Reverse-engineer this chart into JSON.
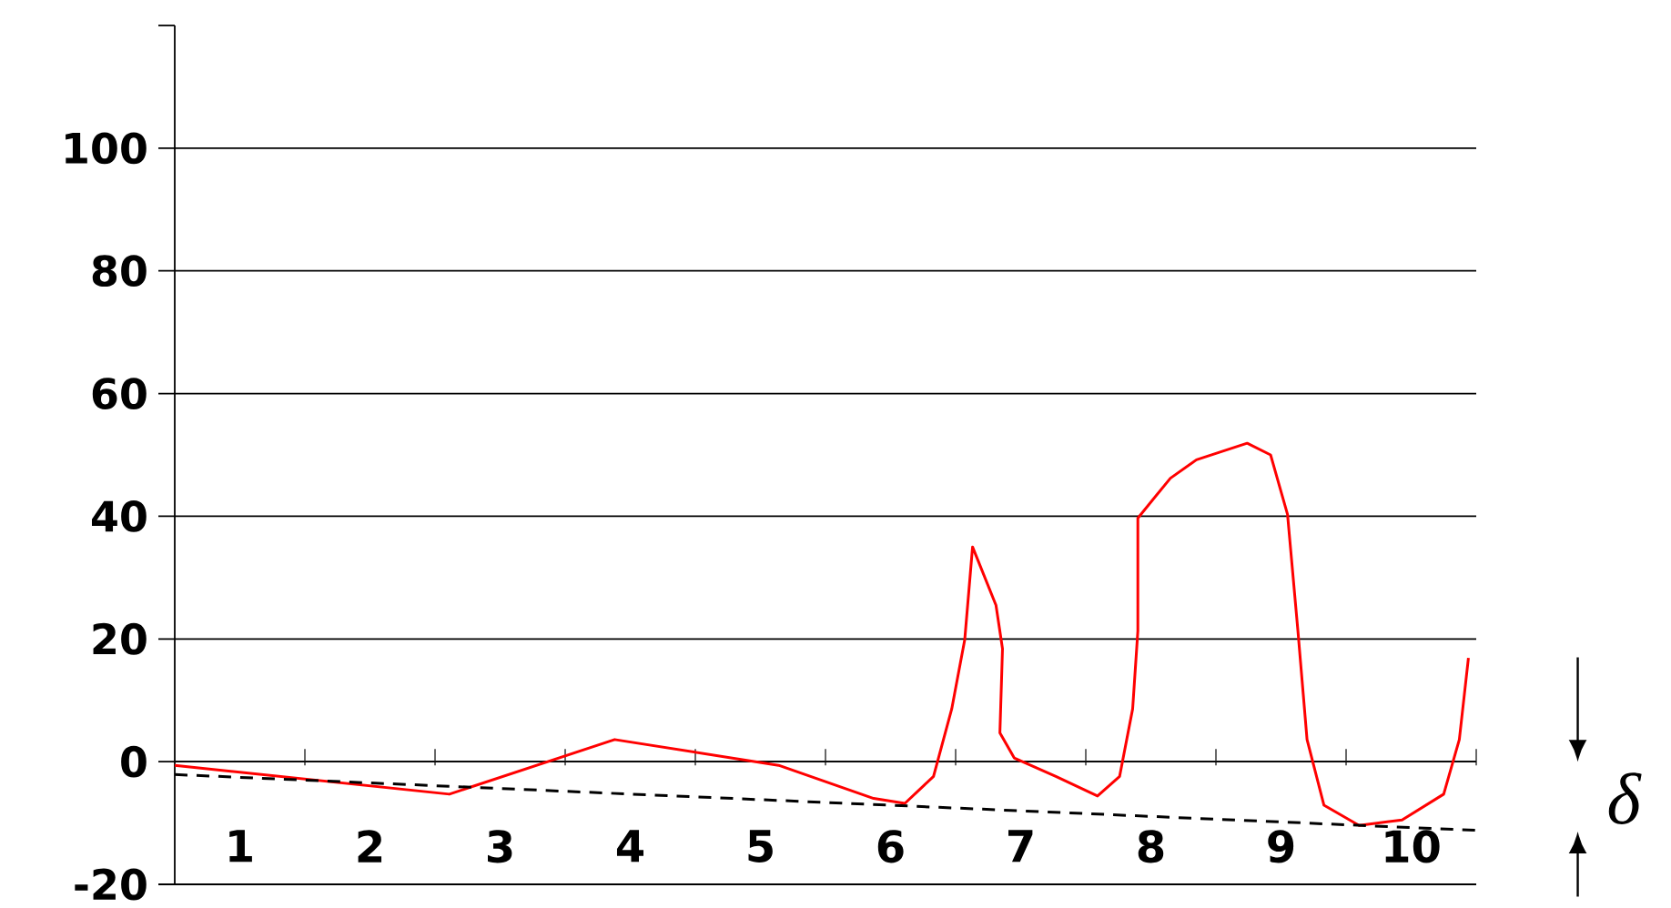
{
  "chart_data": {
    "type": "line",
    "series": [
      {
        "x": [
          0.5,
          2.61,
          3.88,
          5.14,
          5.87,
          6.11,
          6.33,
          6.47,
          6.57,
          6.63,
          6.81,
          6.86,
          6.84,
          6.95,
          7.27,
          7.59,
          7.76,
          7.86,
          7.9,
          7.9,
          8.15,
          8.35,
          8.74,
          8.92,
          9.05,
          9.13,
          9.2,
          9.33,
          9.6,
          9.93,
          10.25,
          10.37,
          10.44
        ],
        "values": [
          -0.6,
          -5.3,
          3.6,
          -0.6,
          -6,
          -6.8,
          -2.4,
          8.6,
          19.9,
          35,
          25.5,
          18.4,
          4.7,
          0.6,
          -2.4,
          -5.6,
          -2.4,
          8.6,
          21.3,
          39.7,
          46.2,
          49.2,
          51.9,
          50,
          40.3,
          21.3,
          3.6,
          -7.1,
          -10.4,
          -9.5,
          -5.3,
          3.6,
          16.9
        ],
        "color": "#ff0000",
        "line_style": "solid"
      },
      {
        "type": "line",
        "x": [
          0.5,
          10.5
        ],
        "values": [
          -2.1,
          -11.2
        ],
        "color": "#000000",
        "line_style": "dashed"
      }
    ],
    "xlim": [
      0.5,
      10.5
    ],
    "xticks": [
      {
        "value": 1,
        "label": "1"
      },
      {
        "value": 2,
        "label": "2"
      },
      {
        "value": 3,
        "label": "3"
      },
      {
        "value": 4,
        "label": "4"
      },
      {
        "value": 5,
        "label": "5"
      },
      {
        "value": 6,
        "label": "6"
      },
      {
        "value": 7,
        "label": "7"
      },
      {
        "value": 8,
        "label": "8"
      },
      {
        "value": 9,
        "label": "9"
      },
      {
        "value": 10,
        "label": "10"
      },
      {
        "value": 1.5,
        "label": null
      },
      {
        "value": 2.5,
        "label": null
      },
      {
        "value": 3.5,
        "label": null
      },
      {
        "value": 4.5,
        "label": null
      },
      {
        "value": 5.5,
        "label": null
      },
      {
        "value": 6.5,
        "label": null
      },
      {
        "value": 7.5,
        "label": null
      },
      {
        "value": 8.5,
        "label": null
      },
      {
        "value": 9.5,
        "label": null
      },
      {
        "value": 10.5,
        "label": null
      }
    ],
    "ylim": [
      -20,
      120
    ],
    "yticks": [
      -20,
      0,
      20,
      40,
      60,
      80,
      100,
      {
        "value": 120,
        "label": null
      }
    ],
    "grid": "y",
    "annotations": [
      "δ"
    ]
  }
}
